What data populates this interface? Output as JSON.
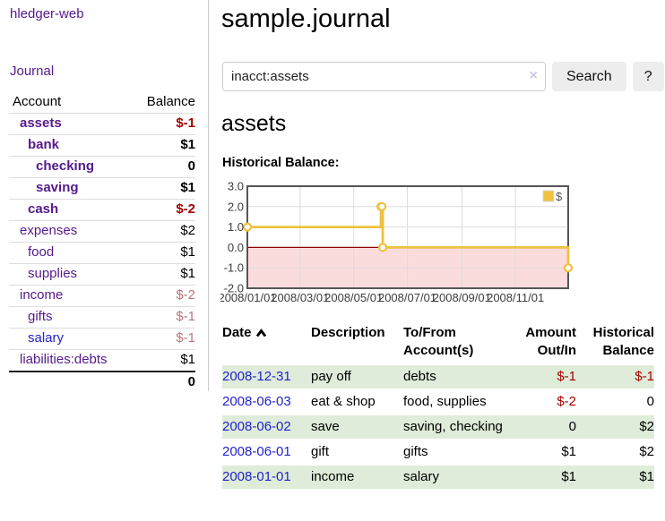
{
  "app": {
    "brand": "hledger-web",
    "nav_journal": "Journal"
  },
  "colors": {
    "link_purple": "#551a8b",
    "link_blue": "#2222cc",
    "negative": "#a40000",
    "negative_muted": "#b97575",
    "row_stripe_green": "#deecd9",
    "chart_line_gold": "#EDC240",
    "chart_negative_region": "#fbdcdc",
    "chart_zero_line": "#8b0000"
  },
  "sidebar": {
    "headers": {
      "account": "Account",
      "balance": "Balance"
    },
    "rows": [
      {
        "account": "assets",
        "balance": "$-1",
        "indent": 1,
        "bold": true,
        "balance_style": "strong-negative",
        "link_style": "purple"
      },
      {
        "account": "bank",
        "balance": "$1",
        "indent": 2,
        "bold": true,
        "balance_style": "normal",
        "link_style": "purple"
      },
      {
        "account": "checking",
        "balance": "0",
        "indent": 3,
        "bold": true,
        "balance_style": "normal",
        "link_style": "purple"
      },
      {
        "account": "saving",
        "balance": "$1",
        "indent": 3,
        "bold": true,
        "balance_style": "normal",
        "link_style": "purple"
      },
      {
        "account": "cash",
        "balance": "$-2",
        "indent": 2,
        "bold": true,
        "balance_style": "strong-negative",
        "link_style": "purple"
      },
      {
        "account": "expenses",
        "balance": "$2",
        "indent": 1,
        "bold": false,
        "balance_style": "normal",
        "link_style": "purple"
      },
      {
        "account": "food",
        "balance": "$1",
        "indent": 2,
        "bold": false,
        "balance_style": "normal",
        "link_style": "purple"
      },
      {
        "account": "supplies",
        "balance": "$1",
        "indent": 2,
        "bold": false,
        "balance_style": "normal",
        "link_style": "purple"
      },
      {
        "account": "income",
        "balance": "$-2",
        "indent": 1,
        "bold": false,
        "balance_style": "muted-negative",
        "link_style": "purple"
      },
      {
        "account": "gifts",
        "balance": "$-1",
        "indent": 2,
        "bold": false,
        "balance_style": "muted-negative",
        "link_style": "purple"
      },
      {
        "account": "salary",
        "balance": "$-1",
        "indent": 2,
        "bold": false,
        "balance_style": "muted-negative",
        "link_style": "blue"
      },
      {
        "account": "liabilities:debts",
        "balance": "$1",
        "indent": 1,
        "bold": false,
        "balance_style": "normal",
        "link_style": "purple"
      }
    ],
    "total": "0"
  },
  "header": {
    "title": "sample.journal"
  },
  "search": {
    "value": "inacct:assets",
    "clear_icon": "×",
    "button_label": "Search",
    "help_label": "?"
  },
  "account_page": {
    "heading": "assets",
    "chart_label": "Historical Balance:"
  },
  "chart_data": {
    "type": "line",
    "step": true,
    "title": "Historical Balance:",
    "legend": [
      {
        "label": "$",
        "color": "#EDC240"
      }
    ],
    "legend_position": "top-right",
    "grid": true,
    "ylim": [
      -2.0,
      3.0
    ],
    "yticks": [
      "3.0",
      "2.0",
      "1.0",
      "0.0",
      "-1.0",
      "-2.0"
    ],
    "ytick_values": [
      3,
      2,
      1,
      0,
      -1,
      -2
    ],
    "xticks": [
      "2008/01/01",
      "2008/03/01",
      "2008/05/01",
      "2008/07/01",
      "2008/09/01",
      "2008/11/01"
    ],
    "x_range": [
      "2008-01-01",
      "2008-12-31"
    ],
    "series": [
      {
        "name": "$",
        "color": "#EDC240",
        "points": [
          [
            "2008-01-01",
            1
          ],
          [
            "2008-06-01",
            2
          ],
          [
            "2008-06-02",
            2
          ],
          [
            "2008-06-03",
            0
          ],
          [
            "2008-12-31",
            -1
          ]
        ]
      }
    ],
    "negative_region_color": "#fbdcdc",
    "zero_line_color": "#8b0000"
  },
  "register": {
    "headers": {
      "date": "Date",
      "sort_icon": "chevron-up",
      "description": "Description",
      "tofrom1": "To/From",
      "tofrom2": "Account(s)",
      "amount1": "Amount",
      "amount2": "Out/In",
      "hist1": "Historical",
      "hist2": "Balance"
    },
    "rows": [
      {
        "date": "2008-12-31",
        "description": "pay off",
        "accounts": "debts",
        "amount": "$-1",
        "amount_negative": true,
        "balance": "$-1",
        "balance_negative": true
      },
      {
        "date": "2008-06-03",
        "description": "eat & shop",
        "accounts": "food, supplies",
        "amount": "$-2",
        "amount_negative": true,
        "balance": "0",
        "balance_negative": false
      },
      {
        "date": "2008-06-02",
        "description": "save",
        "accounts": "saving, checking",
        "amount": "0",
        "amount_negative": false,
        "balance": "$2",
        "balance_negative": false
      },
      {
        "date": "2008-06-01",
        "description": "gift",
        "accounts": "gifts",
        "amount": "$1",
        "amount_negative": false,
        "balance": "$2",
        "balance_negative": false
      },
      {
        "date": "2008-01-01",
        "description": "income",
        "accounts": "salary",
        "amount": "$1",
        "amount_negative": false,
        "balance": "$1",
        "balance_negative": false
      }
    ]
  }
}
